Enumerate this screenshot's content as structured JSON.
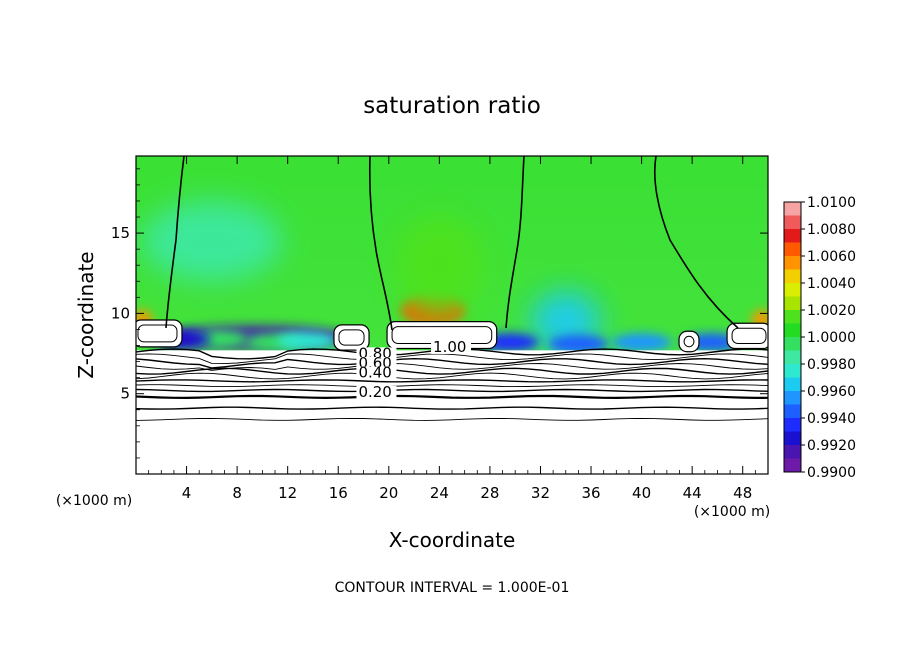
{
  "chart_data": {
    "type": "heatmap",
    "title": "saturation ratio",
    "xlabel": "X-coordinate",
    "ylabel": "Z-coordinate",
    "x_unit": "(×1000 m)",
    "z_unit": "(×1000 m)",
    "xlim": [
      0,
      50
    ],
    "ylim": [
      0,
      19.8
    ],
    "x_ticks": [
      4,
      8,
      12,
      16,
      20,
      24,
      28,
      32,
      36,
      40,
      44,
      48
    ],
    "y_ticks": [
      5,
      10,
      15
    ],
    "colorbar": {
      "range": [
        0.99,
        1.01
      ],
      "labels": [
        "1.0100",
        "1.0080",
        "1.0060",
        "1.0040",
        "1.0020",
        "1.0000",
        "0.9980",
        "0.9960",
        "0.9940",
        "0.9920",
        "0.9900"
      ],
      "colors": [
        "#f6a3a3",
        "#f05a5a",
        "#e31a1a",
        "#ff5a00",
        "#ff9400",
        "#f2d000",
        "#d9ee00",
        "#a8e400",
        "#4ee21e",
        "#22dc22",
        "#34e060",
        "#3ee8a0",
        "#2ee8d0",
        "#1ecbf0",
        "#1e95ff",
        "#1e5fff",
        "#1e2cff",
        "#1a10d0",
        "#4a14b0",
        "#6e1aa8"
      ]
    },
    "contour_interval": "CONTOUR INTERVAL = 1.000E-01",
    "contour_labels": [
      {
        "text": "1.00",
        "x": 23.5,
        "z": 7.6
      },
      {
        "text": "0.80",
        "x": 17.6,
        "z": 7.2
      },
      {
        "text": "0.60",
        "x": 17.6,
        "z": 6.6
      },
      {
        "text": "0.40",
        "x": 17.6,
        "z": 6.0
      },
      {
        "text": "0.20",
        "x": 17.6,
        "z": 4.8
      }
    ],
    "features": [
      {
        "kind": "hot",
        "x": 23.5,
        "z": 10.2,
        "value": 1.0065
      },
      {
        "kind": "warm",
        "x": 24,
        "z": 13,
        "value": 1.002
      },
      {
        "kind": "cold",
        "x": 9.5,
        "z": 8.5,
        "value": 0.9915
      },
      {
        "kind": "cool",
        "x": 6,
        "z": 14.5,
        "value": 0.9985
      },
      {
        "kind": "cool",
        "x": 34,
        "z": 9.5,
        "value": 0.997
      },
      {
        "kind": "warm",
        "x": 0.5,
        "z": 9.6,
        "value": 1.006
      },
      {
        "kind": "warm",
        "x": 49.5,
        "z": 9.6,
        "value": 1.006
      }
    ],
    "clouds": [
      {
        "x0": 0,
        "x1": 3.4,
        "z0": 8.1,
        "z1": 9.4
      },
      {
        "x0": 15.9,
        "x1": 18.2,
        "z0": 7.9,
        "z1": 9.1
      },
      {
        "x0": 20.1,
        "x1": 28.3,
        "z0": 8.0,
        "z1": 9.3
      },
      {
        "x0": 43.2,
        "x1": 44.3,
        "z0": 7.8,
        "z1": 8.7
      },
      {
        "x0": 47.0,
        "x1": 50.0,
        "z0": 8.0,
        "z1": 9.2
      }
    ]
  }
}
